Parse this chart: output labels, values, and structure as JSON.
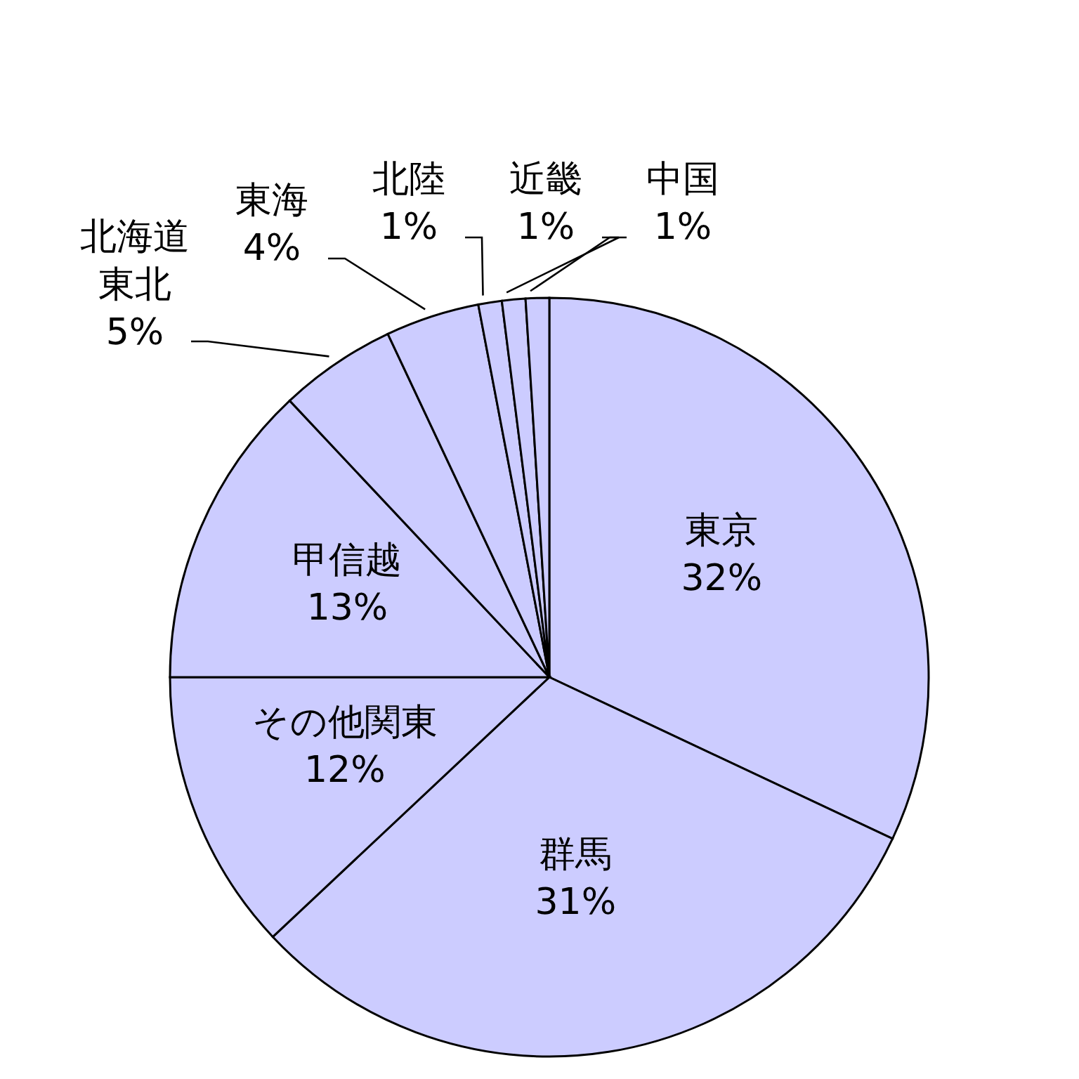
{
  "chart_data": {
    "type": "pie",
    "categories": [
      "東京",
      "群馬",
      "その他関東",
      "甲信越",
      "北海道東北",
      "東海",
      "北陸",
      "近畿",
      "中国"
    ],
    "values": [
      32,
      31,
      12,
      13,
      5,
      4,
      1,
      1,
      1
    ],
    "value_labels": [
      "32%",
      "31%",
      "12%",
      "13%",
      "5%",
      "4%",
      "1%",
      "1%",
      "1%"
    ],
    "colors": [
      "#ccccff",
      "#ccccff",
      "#ccccff",
      "#ccccff",
      "#ccccff",
      "#ccccff",
      "#ccccff",
      "#ccccff",
      "#ccccff"
    ]
  }
}
